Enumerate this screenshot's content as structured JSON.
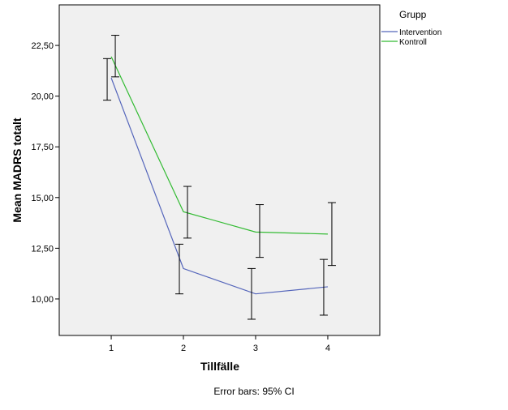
{
  "chart_data": {
    "type": "line",
    "xlabel": "Tillfälle",
    "ylabel": "Mean MADRS totalt",
    "footnote": "Error bars: 95% CI",
    "x": [
      1,
      2,
      3,
      4
    ],
    "xlim": [
      0.28,
      4.72
    ],
    "ylim": [
      8.2,
      24.5
    ],
    "y_ticks": [
      10.0,
      12.5,
      15.0,
      17.5,
      20.0,
      22.5
    ],
    "y_tick_labels": [
      "10,00",
      "12,50",
      "15,00",
      "17,50",
      "20,00",
      "22,50"
    ],
    "x_tick_labels": [
      "1",
      "2",
      "3",
      "4"
    ],
    "grid": false,
    "background": "#f0f0f0",
    "legend": {
      "title": "Grupp",
      "placement": "right"
    },
    "series": [
      {
        "name": "Intervention",
        "color": "#5566bb",
        "values": [
          20.9,
          11.5,
          10.25,
          10.6
        ],
        "ci_low": [
          19.8,
          10.25,
          9.0,
          9.2
        ],
        "ci_high": [
          21.85,
          12.7,
          11.5,
          11.95
        ]
      },
      {
        "name": "Kontroll",
        "color": "#33bb33",
        "values": [
          21.95,
          14.3,
          13.3,
          13.2
        ],
        "ci_low": [
          20.95,
          13.0,
          12.05,
          11.65
        ],
        "ci_high": [
          23.0,
          15.55,
          14.65,
          14.75
        ]
      }
    ]
  }
}
